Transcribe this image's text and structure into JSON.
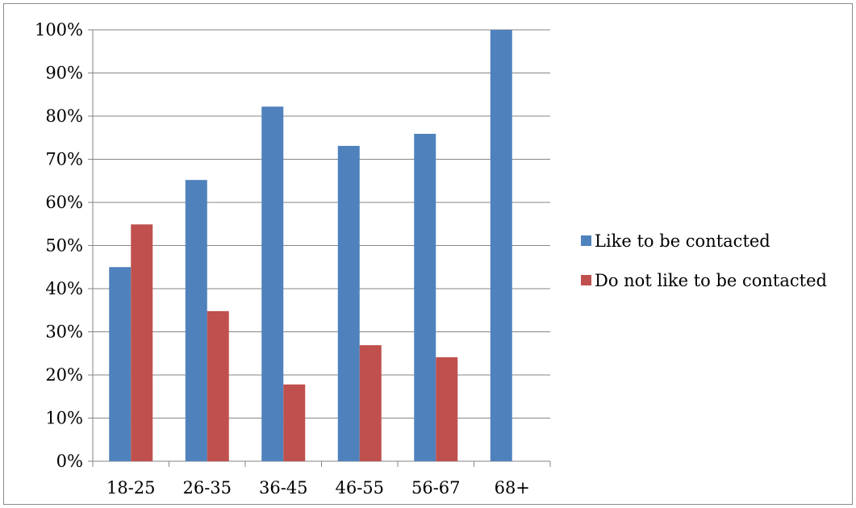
{
  "chart_data": {
    "type": "bar",
    "categories": [
      "18-25",
      "26-35",
      "36-45",
      "46-55",
      "56-67",
      "68+"
    ],
    "series": [
      {
        "name": "Like to be contacted",
        "values": [
          45,
          65.2,
          82.2,
          73.1,
          75.9,
          100
        ],
        "color": "#4f81bd"
      },
      {
        "name": "Do not like to be contacted",
        "values": [
          54.9,
          34.8,
          17.8,
          26.9,
          24.1,
          0
        ],
        "color": "#c0504d"
      }
    ],
    "ylim": [
      0,
      100
    ],
    "ytick_step": 10,
    "ytick_labels": [
      "0%",
      "10%",
      "20%",
      "30%",
      "40%",
      "50%",
      "60%",
      "70%",
      "80%",
      "90%",
      "100%"
    ],
    "grid": true,
    "legend_position": "right",
    "title": "",
    "xlabel": "",
    "ylabel": ""
  }
}
